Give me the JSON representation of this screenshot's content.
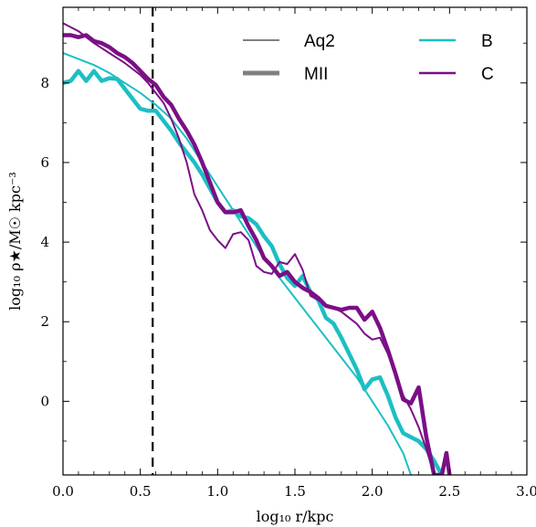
{
  "chart_data": {
    "type": "line",
    "xlabel": "log₁₀ r/kpc",
    "ylabel": "log₁₀ ρ★/M☉ kpc⁻³",
    "xlim": [
      0.0,
      3.0
    ],
    "ylim": [
      -1.85,
      9.9
    ],
    "xticks": [
      0.0,
      0.5,
      1.0,
      1.5,
      2.0,
      2.5,
      3.0
    ],
    "xtick_labels": [
      "0.0",
      "0.5",
      "1.0",
      "1.5",
      "2.0",
      "2.5",
      "3.0"
    ],
    "yticks": [
      0,
      2,
      4,
      6,
      8
    ],
    "ytick_labels": [
      "0",
      "2",
      "4",
      "6",
      "8"
    ],
    "grid": false,
    "vline": {
      "x": 0.58,
      "style": "dashed",
      "color": "#000000"
    },
    "legend": {
      "placement": "top-right",
      "styles": [
        {
          "label": "Aq2",
          "color": "#808080",
          "weight": "thin"
        },
        {
          "label": "MII",
          "color": "#808080",
          "weight": "thick"
        }
      ],
      "halos": [
        {
          "label": "B",
          "color": "#1cbfc4"
        },
        {
          "label": "C",
          "color": "#7b0f86"
        }
      ]
    },
    "series": [
      {
        "halo": "B",
        "style": "Aq2",
        "color": "#1cbfc4",
        "x": [
          0.0,
          0.1,
          0.2,
          0.3,
          0.4,
          0.5,
          0.6,
          0.7,
          0.8,
          0.9,
          1.0,
          1.1,
          1.2,
          1.3,
          1.4,
          1.5,
          1.6,
          1.7,
          1.8,
          1.9,
          2.0,
          2.1,
          2.2,
          2.25
        ],
        "values": [
          8.75,
          8.6,
          8.45,
          8.25,
          8.0,
          7.75,
          7.45,
          7.1,
          6.6,
          6.0,
          5.4,
          4.8,
          4.2,
          3.6,
          3.1,
          2.6,
          2.1,
          1.6,
          1.1,
          0.6,
          0.0,
          -0.6,
          -1.3,
          -1.85
        ]
      },
      {
        "halo": "B",
        "style": "MII",
        "color": "#1cbfc4",
        "x": [
          0.0,
          0.05,
          0.1,
          0.15,
          0.2,
          0.25,
          0.3,
          0.35,
          0.4,
          0.45,
          0.5,
          0.55,
          0.6,
          0.65,
          0.7,
          0.75,
          0.8,
          0.85,
          0.9,
          0.95,
          1.0,
          1.05,
          1.1,
          1.15,
          1.2,
          1.25,
          1.3,
          1.35,
          1.4,
          1.45,
          1.5,
          1.55,
          1.6,
          1.65,
          1.7,
          1.75,
          1.8,
          1.85,
          1.9,
          1.95,
          2.0,
          2.05,
          2.1,
          2.15,
          2.2,
          2.25,
          2.3,
          2.35,
          2.4,
          2.45
        ],
        "values": [
          8.0,
          8.05,
          8.3,
          8.05,
          8.3,
          8.05,
          8.12,
          8.1,
          7.85,
          7.6,
          7.35,
          7.3,
          7.3,
          7.05,
          6.8,
          6.5,
          6.25,
          6.0,
          5.7,
          5.35,
          5.0,
          4.75,
          4.8,
          4.65,
          4.6,
          4.45,
          4.15,
          3.9,
          3.45,
          3.1,
          2.9,
          3.15,
          2.75,
          2.55,
          2.1,
          1.95,
          1.6,
          1.2,
          0.8,
          0.3,
          0.55,
          0.6,
          0.15,
          -0.4,
          -0.8,
          -0.9,
          -1.0,
          -1.2,
          -1.5,
          -1.85
        ]
      },
      {
        "halo": "C",
        "style": "Aq2",
        "color": "#7b0f86",
        "x": [
          0.0,
          0.1,
          0.2,
          0.3,
          0.4,
          0.5,
          0.55,
          0.6,
          0.65,
          0.7,
          0.75,
          0.8,
          0.85,
          0.9,
          0.95,
          1.0,
          1.05,
          1.1,
          1.15,
          1.2,
          1.25,
          1.3,
          1.35,
          1.4,
          1.45,
          1.5,
          1.55,
          1.6,
          1.65,
          1.7,
          1.75,
          1.8,
          1.85,
          1.9,
          1.95,
          2.0,
          2.05,
          2.1,
          2.15,
          2.2,
          2.25,
          2.3,
          2.35,
          2.4
        ],
        "values": [
          9.5,
          9.3,
          9.0,
          8.75,
          8.5,
          8.2,
          8.0,
          7.75,
          7.5,
          7.1,
          6.6,
          6.0,
          5.2,
          4.8,
          4.3,
          4.05,
          3.85,
          4.2,
          4.25,
          4.05,
          3.4,
          3.25,
          3.2,
          3.5,
          3.45,
          3.7,
          3.3,
          2.65,
          2.55,
          2.4,
          2.35,
          2.25,
          2.1,
          1.95,
          1.7,
          1.55,
          1.6,
          1.2,
          0.7,
          0.15,
          -0.2,
          -0.65,
          -1.2,
          -1.85
        ]
      },
      {
        "halo": "C",
        "style": "MII",
        "color": "#7b0f86",
        "x": [
          0.0,
          0.05,
          0.1,
          0.15,
          0.2,
          0.25,
          0.3,
          0.35,
          0.4,
          0.45,
          0.5,
          0.55,
          0.6,
          0.65,
          0.7,
          0.75,
          0.8,
          0.85,
          0.9,
          0.95,
          1.0,
          1.05,
          1.1,
          1.15,
          1.2,
          1.25,
          1.3,
          1.35,
          1.4,
          1.45,
          1.5,
          1.55,
          1.6,
          1.65,
          1.7,
          1.75,
          1.8,
          1.85,
          1.9,
          1.95,
          2.0,
          2.05,
          2.1,
          2.15,
          2.2,
          2.25,
          2.3,
          2.35,
          2.4,
          2.45,
          2.48,
          2.5
        ],
        "values": [
          9.2,
          9.2,
          9.15,
          9.2,
          9.05,
          9.0,
          8.9,
          8.75,
          8.65,
          8.5,
          8.3,
          8.1,
          7.95,
          7.65,
          7.45,
          7.1,
          6.8,
          6.45,
          6.0,
          5.5,
          5.0,
          4.75,
          4.75,
          4.8,
          4.4,
          4.05,
          3.6,
          3.4,
          3.15,
          3.25,
          3.0,
          2.85,
          2.75,
          2.6,
          2.4,
          2.35,
          2.3,
          2.35,
          2.35,
          2.05,
          2.25,
          1.85,
          1.3,
          0.7,
          0.05,
          -0.05,
          0.35,
          -0.9,
          -1.85,
          -1.85,
          -1.3,
          -1.85
        ]
      }
    ]
  }
}
